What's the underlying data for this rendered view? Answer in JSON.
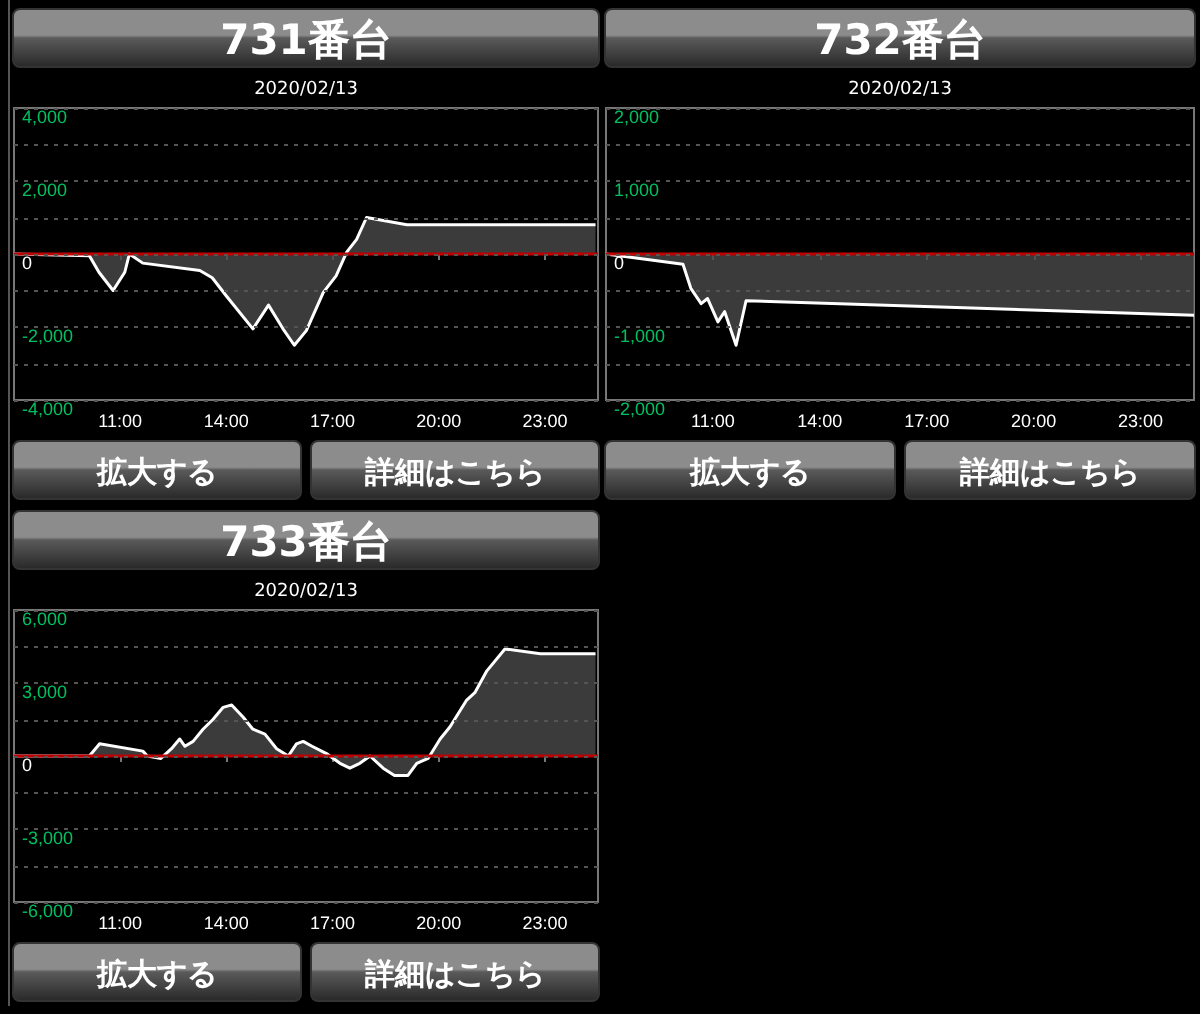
{
  "chart_data": [
    {
      "type": "area",
      "title": "731番台",
      "subtitle": "2020/02/13",
      "annotations": [
        "拡大する",
        "詳細はこちら"
      ],
      "grid": "y",
      "marker": "none",
      "series": [
        {
          "color": "#ffffff",
          "x": [
            8.0,
            10.13,
            10.4,
            10.8,
            11.13,
            11.26,
            11.64,
            13.25,
            13.6,
            14.0,
            14.75,
            15.19,
            15.6,
            15.92,
            16.26,
            16.74,
            17.1,
            17.4,
            17.68,
            17.96,
            19.1,
            24.43
          ],
          "values": [
            0,
            -50,
            -500,
            -1000,
            -500,
            0,
            -250,
            -450,
            -650,
            -1150,
            -2050,
            -1400,
            -2050,
            -2500,
            -2100,
            -1050,
            -600,
            50,
            400,
            1000,
            800,
            800
          ]
        }
      ],
      "xlim": [
        8,
        24.5
      ],
      "xticks": [
        {
          "value": 11,
          "label": "11:00"
        },
        {
          "value": 14,
          "label": "14:00"
        },
        {
          "value": 17,
          "label": "17:00"
        },
        {
          "value": 20,
          "label": "20:00"
        },
        {
          "value": 23,
          "label": "23:00"
        }
      ],
      "ylim": [
        -4000,
        4000
      ],
      "yticks": [
        {
          "value": -4000,
          "label": "-4,000"
        },
        {
          "value": -3000,
          "label": null
        },
        {
          "value": -2000,
          "label": "-2,000"
        },
        {
          "value": -1000,
          "label": null
        },
        {
          "value": 0,
          "label": "0"
        },
        {
          "value": 1000,
          "label": null
        },
        {
          "value": 2000,
          "label": "2,000"
        },
        {
          "value": 3000,
          "label": null
        },
        {
          "value": 4000,
          "label": "4,000"
        }
      ],
      "ref_lines": [
        {
          "axis": "y",
          "value": 0,
          "color": "#c00000"
        }
      ]
    },
    {
      "type": "area",
      "title": "732番台",
      "subtitle": "2020/02/13",
      "annotations": [
        "拡大する",
        "詳細はこちら"
      ],
      "grid": "y",
      "marker": "none",
      "series": [
        {
          "color": "#ffffff",
          "x": [
            8.0,
            10.16,
            10.38,
            10.67,
            10.85,
            11.14,
            11.33,
            11.65,
            11.93,
            24.5
          ],
          "values": [
            0,
            -140,
            -470,
            -680,
            -610,
            -930,
            -790,
            -1250,
            -640,
            -840
          ]
        }
      ],
      "xlim": [
        8,
        24.5
      ],
      "xticks": [
        {
          "value": 11,
          "label": "11:00"
        },
        {
          "value": 14,
          "label": "14:00"
        },
        {
          "value": 17,
          "label": "17:00"
        },
        {
          "value": 20,
          "label": "20:00"
        },
        {
          "value": 23,
          "label": "23:00"
        }
      ],
      "ylim": [
        -2000,
        2000
      ],
      "yticks": [
        {
          "value": -2000,
          "label": "-2,000"
        },
        {
          "value": -1500,
          "label": null
        },
        {
          "value": -1000,
          "label": "-1,000"
        },
        {
          "value": -500,
          "label": null
        },
        {
          "value": 0,
          "label": "0"
        },
        {
          "value": 500,
          "label": null
        },
        {
          "value": 1000,
          "label": "1,000"
        },
        {
          "value": 1500,
          "label": null
        },
        {
          "value": 2000,
          "label": "2,000"
        }
      ],
      "ref_lines": [
        {
          "axis": "y",
          "value": 0,
          "color": "#c00000"
        }
      ]
    },
    {
      "type": "area",
      "title": "733番台",
      "subtitle": "2020/02/13",
      "annotations": [
        "拡大する",
        "詳細はこちら"
      ],
      "grid": "y",
      "marker": "none",
      "series": [
        {
          "color": "#ffffff",
          "x": [
            8.0,
            10.13,
            10.42,
            11.64,
            11.77,
            12.15,
            12.45,
            12.68,
            12.83,
            13.06,
            13.34,
            13.62,
            13.91,
            14.15,
            14.47,
            14.75,
            15.09,
            15.42,
            15.75,
            15.98,
            16.17,
            16.42,
            16.83,
            17.21,
            17.49,
            17.77,
            18.06,
            18.43,
            18.75,
            19.13,
            19.38,
            19.7,
            20.04,
            20.32,
            20.79,
            21.02,
            21.36,
            21.87,
            22.87,
            24.43
          ],
          "values": [
            0,
            0,
            500,
            200,
            0,
            -100,
            300,
            700,
            400,
            600,
            1100,
            1500,
            2000,
            2100,
            1600,
            1100,
            900,
            300,
            0,
            500,
            600,
            400,
            100,
            -300,
            -500,
            -300,
            0,
            -500,
            -800,
            -800,
            -300,
            -100,
            700,
            1200,
            2300,
            2600,
            3500,
            4400,
            4200,
            4200
          ]
        }
      ],
      "xlim": [
        8,
        24.5
      ],
      "xticks": [
        {
          "value": 11,
          "label": "11:00"
        },
        {
          "value": 14,
          "label": "14:00"
        },
        {
          "value": 17,
          "label": "17:00"
        },
        {
          "value": 20,
          "label": "20:00"
        },
        {
          "value": 23,
          "label": "23:00"
        }
      ],
      "ylim": [
        -6000,
        6000
      ],
      "yticks": [
        {
          "value": -6000,
          "label": "-6,000"
        },
        {
          "value": -4500,
          "label": null
        },
        {
          "value": -3000,
          "label": "-3,000"
        },
        {
          "value": -1500,
          "label": null
        },
        {
          "value": 0,
          "label": "0"
        },
        {
          "value": 1500,
          "label": null
        },
        {
          "value": 3000,
          "label": "3,000"
        },
        {
          "value": 4500,
          "label": null
        },
        {
          "value": 6000,
          "label": "6,000"
        }
      ],
      "ref_lines": [
        {
          "axis": "y",
          "value": 0,
          "color": "#c00000"
        }
      ]
    }
  ]
}
